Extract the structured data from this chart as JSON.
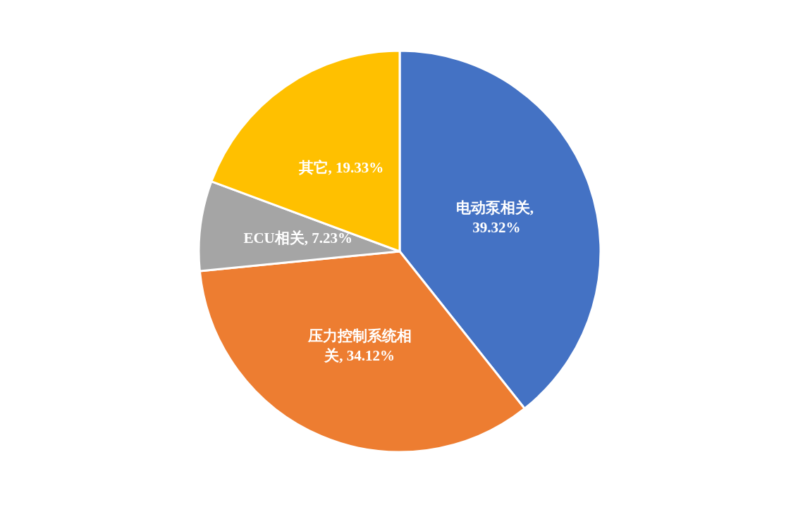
{
  "chart_data": {
    "type": "pie",
    "categories": [
      "电动泵相关",
      "压力控制系统相关",
      "ECU相关",
      "其它"
    ],
    "values": [
      39.32,
      34.12,
      7.23,
      19.33
    ],
    "value_labels": [
      ", 39.32%",
      ", 34.12%",
      ", 7.23%",
      ", 19.33%"
    ],
    "colors": [
      "#4472c4",
      "#ed7d31",
      "#a5a5a5",
      "#ffc000"
    ],
    "legend": false
  }
}
